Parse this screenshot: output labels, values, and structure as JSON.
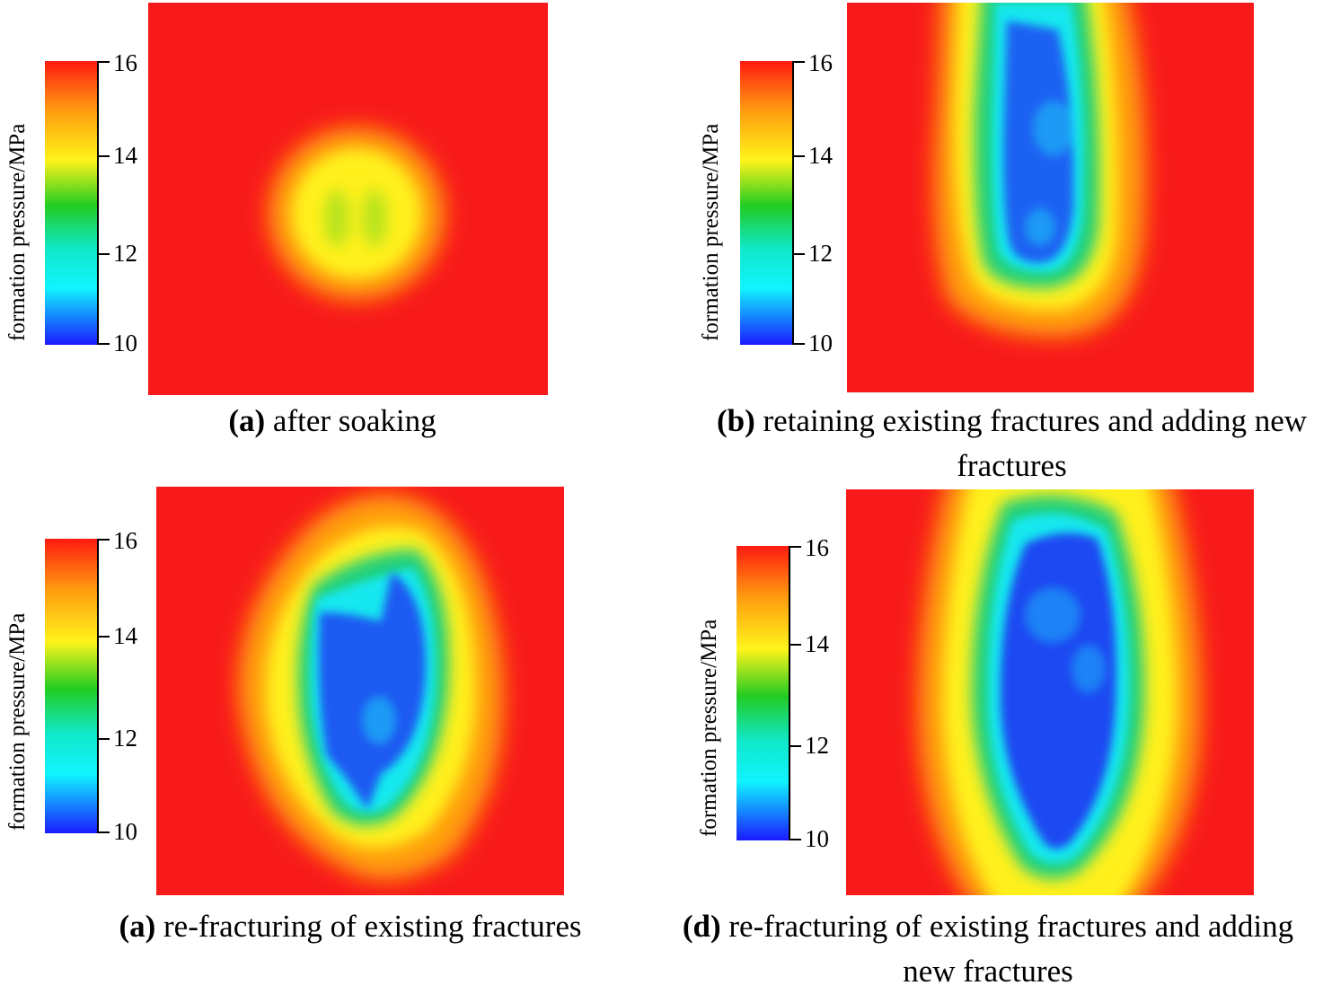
{
  "chart_data": [
    {
      "type": "heatmap",
      "panel_label": "(a)",
      "caption": "after soaking",
      "colorbar_title": "formation pressure/MPa",
      "colorbar_ticks": [
        "16",
        "14",
        "12",
        "10"
      ],
      "colorbar_range": [
        10,
        16
      ],
      "low_pressure_zone": "small central yellow-green zone, min ≈ 13.5 MPa"
    },
    {
      "type": "heatmap",
      "panel_label": "(b)",
      "caption": "retaining existing fractures and adding new fractures",
      "colorbar_title": "formation pressure/MPa",
      "colorbar_ticks": [
        "16",
        "14",
        "12",
        "10"
      ],
      "colorbar_range": [
        10,
        16
      ],
      "low_pressure_zone": "elongated vertical blue zone reaching top edge, min ≈ 10.5 MPa"
    },
    {
      "type": "heatmap",
      "panel_label": "(a)",
      "caption": "re-fracturing of existing fractures",
      "colorbar_title": "formation pressure/MPa",
      "colorbar_ticks": [
        "16",
        "14",
        "12",
        "10"
      ],
      "colorbar_range": [
        10,
        16
      ],
      "low_pressure_zone": "central blue zone, min ≈ 10.5 MPa"
    },
    {
      "type": "heatmap",
      "panel_label": "(d)",
      "caption": "re-fracturing of existing fractures and adding new fractures",
      "colorbar_title": "formation pressure/MPa",
      "colorbar_ticks": [
        "16",
        "14",
        "12",
        "10"
      ],
      "colorbar_range": [
        10,
        16
      ],
      "low_pressure_zone": "large vertical blue zone spanning full height, min ≈ 10.3 MPa"
    }
  ],
  "colors": {
    "high": "#f81a1a",
    "orange": "#ff9a10",
    "yellow": "#fff41a",
    "green": "#26d31a",
    "cyan": "#10f4f4",
    "blue": "#1a5af8",
    "deep_blue": "#1a1aff"
  }
}
